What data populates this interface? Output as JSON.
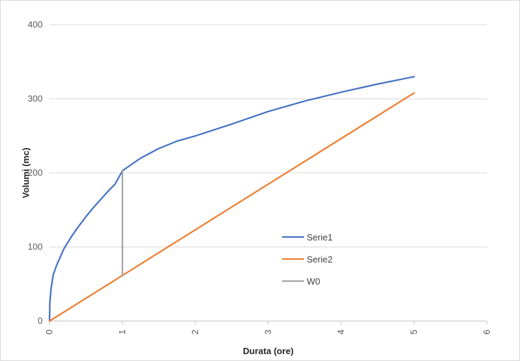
{
  "chart_data": {
    "type": "line",
    "xlabel": "Durata (ore)",
    "ylabel": "Volumi (mc)",
    "xlim": [
      0,
      6
    ],
    "ylim": [
      0,
      400
    ],
    "x_ticks": [
      "0",
      "1",
      "2",
      "3",
      "4",
      "5",
      "6"
    ],
    "y_ticks": [
      "0",
      "100",
      "200",
      "300",
      "400"
    ],
    "grid": "horizontal",
    "legend_position": "center-right",
    "series": [
      {
        "name": "Serie1",
        "color": "#4472C4",
        "x": [
          0,
          0.005,
          0.02,
          0.05,
          0.1,
          0.2,
          0.3,
          0.4,
          0.5,
          0.6,
          0.7,
          0.8,
          0.9,
          1.0,
          1.25,
          1.5,
          1.75,
          2.0,
          2.5,
          3.0,
          3.5,
          4.0,
          4.5,
          5.0
        ],
        "y": [
          0,
          25,
          43,
          62,
          76,
          98,
          114,
          128,
          141,
          153,
          164,
          175,
          185,
          203,
          220,
          233,
          243,
          250,
          266,
          283,
          297,
          309,
          320,
          330
        ]
      },
      {
        "name": "Serie2",
        "color": "#ED7D31",
        "x": [
          0,
          5
        ],
        "y": [
          0,
          308
        ]
      },
      {
        "name": "W0",
        "color": "#A5A5A5",
        "x": [
          1,
          1
        ],
        "y": [
          61,
          203
        ]
      }
    ]
  }
}
